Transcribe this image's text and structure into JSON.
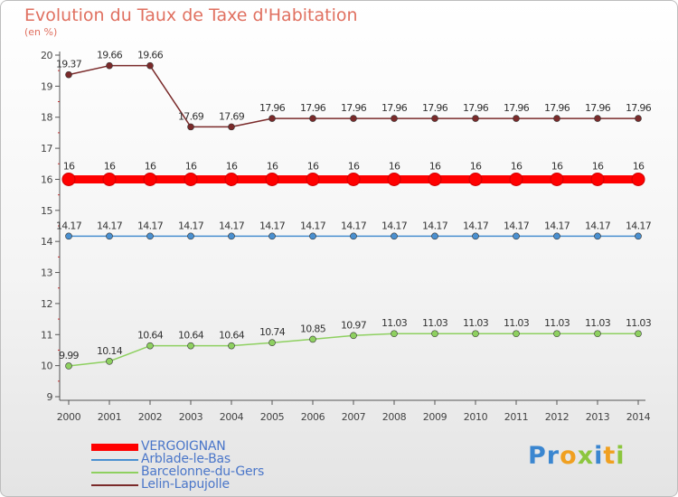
{
  "title": "Evolution du Taux de Taxe d'Habitation",
  "subtitle": "(en %)",
  "logo": {
    "text": "Proxiti",
    "colors": [
      "#3a86d0",
      "#f0a020",
      "#8cc63e"
    ]
  },
  "chart_data": {
    "type": "line",
    "title": "Evolution du Taux de Taxe d'Habitation",
    "subtitle": "(en %)",
    "xlabel": "",
    "ylabel": "",
    "ylim": [
      9,
      20
    ],
    "yticks": [
      9,
      10,
      11,
      12,
      13,
      14,
      15,
      16,
      17,
      18,
      19,
      20
    ],
    "categories": [
      "2000",
      "2001",
      "2002",
      "2003",
      "2004",
      "2005",
      "2006",
      "2007",
      "2008",
      "2009",
      "2010",
      "2011",
      "2012",
      "2013",
      "2014"
    ],
    "grid": false,
    "legend_position": "bottom-left",
    "series": [
      {
        "name": "VERGOIGNAN",
        "color": "#ff0000",
        "emphasis": true,
        "values": [
          16,
          16,
          16,
          16,
          16,
          16,
          16,
          16,
          16,
          16,
          16,
          16,
          16,
          16,
          16
        ],
        "labels": [
          "16",
          "16",
          "16",
          "16",
          "16",
          "16",
          "16",
          "16",
          "16",
          "16",
          "16",
          "16",
          "16",
          "16",
          "16"
        ]
      },
      {
        "name": "Arblade-le-Bas",
        "color": "#4a90d0",
        "values": [
          14.17,
          14.17,
          14.17,
          14.17,
          14.17,
          14.17,
          14.17,
          14.17,
          14.17,
          14.17,
          14.17,
          14.17,
          14.17,
          14.17,
          14.17
        ],
        "labels": [
          "14.17",
          "14.17",
          "14.17",
          "14.17",
          "14.17",
          "14.17",
          "14.17",
          "14.17",
          "14.17",
          "14.17",
          "14.17",
          "14.17",
          "14.17",
          "14.17",
          "14.17"
        ]
      },
      {
        "name": "Barcelonne-du-Gers",
        "color": "#8ed060",
        "values": [
          9.99,
          10.14,
          10.64,
          10.64,
          10.64,
          10.74,
          10.85,
          10.97,
          11.03,
          11.03,
          11.03,
          11.03,
          11.03,
          11.03,
          11.03
        ],
        "labels": [
          "9.99",
          "10.14",
          "10.64",
          "10.64",
          "10.64",
          "10.74",
          "10.85",
          "10.97",
          "11.03",
          "11.03",
          "11.03",
          "11.03",
          "11.03",
          "11.03",
          "11.03"
        ]
      },
      {
        "name": "Lelin-Lapujolle",
        "color": "#7a2a2a",
        "values": [
          19.37,
          19.66,
          19.66,
          17.69,
          17.69,
          17.96,
          17.96,
          17.96,
          17.96,
          17.96,
          17.96,
          17.96,
          17.96,
          17.96,
          17.96
        ],
        "labels": [
          "19.37",
          "19.66",
          "19.66",
          "17.69",
          "17.69",
          "17.96",
          "17.96",
          "17.96",
          "17.96",
          "17.96",
          "17.96",
          "17.96",
          "17.96",
          "17.96",
          "17.96"
        ]
      }
    ]
  }
}
